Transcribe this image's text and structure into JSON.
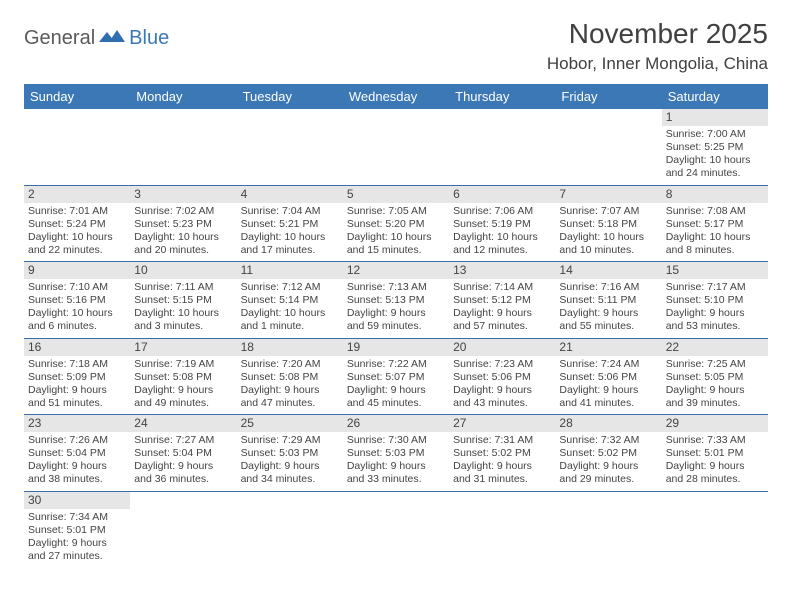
{
  "brand": {
    "text1": "General",
    "text2": "Blue",
    "icon_color": "#2f6fb0"
  },
  "title": "November 2025",
  "location": "Hobor, Inner Mongolia, China",
  "colors": {
    "header_bg": "#3b78b5",
    "header_text": "#ffffff",
    "daynum_bg": "#e6e6e6",
    "divider": "#3b6ea8",
    "text": "#444444"
  },
  "days_of_week": [
    "Sunday",
    "Monday",
    "Tuesday",
    "Wednesday",
    "Thursday",
    "Friday",
    "Saturday"
  ],
  "weeks": [
    [
      null,
      null,
      null,
      null,
      null,
      null,
      {
        "n": "1",
        "sunrise": "7:00 AM",
        "sunset": "5:25 PM",
        "daylight": "10 hours and 24 minutes."
      }
    ],
    [
      {
        "n": "2",
        "sunrise": "7:01 AM",
        "sunset": "5:24 PM",
        "daylight": "10 hours and 22 minutes."
      },
      {
        "n": "3",
        "sunrise": "7:02 AM",
        "sunset": "5:23 PM",
        "daylight": "10 hours and 20 minutes."
      },
      {
        "n": "4",
        "sunrise": "7:04 AM",
        "sunset": "5:21 PM",
        "daylight": "10 hours and 17 minutes."
      },
      {
        "n": "5",
        "sunrise": "7:05 AM",
        "sunset": "5:20 PM",
        "daylight": "10 hours and 15 minutes."
      },
      {
        "n": "6",
        "sunrise": "7:06 AM",
        "sunset": "5:19 PM",
        "daylight": "10 hours and 12 minutes."
      },
      {
        "n": "7",
        "sunrise": "7:07 AM",
        "sunset": "5:18 PM",
        "daylight": "10 hours and 10 minutes."
      },
      {
        "n": "8",
        "sunrise": "7:08 AM",
        "sunset": "5:17 PM",
        "daylight": "10 hours and 8 minutes."
      }
    ],
    [
      {
        "n": "9",
        "sunrise": "7:10 AM",
        "sunset": "5:16 PM",
        "daylight": "10 hours and 6 minutes."
      },
      {
        "n": "10",
        "sunrise": "7:11 AM",
        "sunset": "5:15 PM",
        "daylight": "10 hours and 3 minutes."
      },
      {
        "n": "11",
        "sunrise": "7:12 AM",
        "sunset": "5:14 PM",
        "daylight": "10 hours and 1 minute."
      },
      {
        "n": "12",
        "sunrise": "7:13 AM",
        "sunset": "5:13 PM",
        "daylight": "9 hours and 59 minutes."
      },
      {
        "n": "13",
        "sunrise": "7:14 AM",
        "sunset": "5:12 PM",
        "daylight": "9 hours and 57 minutes."
      },
      {
        "n": "14",
        "sunrise": "7:16 AM",
        "sunset": "5:11 PM",
        "daylight": "9 hours and 55 minutes."
      },
      {
        "n": "15",
        "sunrise": "7:17 AM",
        "sunset": "5:10 PM",
        "daylight": "9 hours and 53 minutes."
      }
    ],
    [
      {
        "n": "16",
        "sunrise": "7:18 AM",
        "sunset": "5:09 PM",
        "daylight": "9 hours and 51 minutes."
      },
      {
        "n": "17",
        "sunrise": "7:19 AM",
        "sunset": "5:08 PM",
        "daylight": "9 hours and 49 minutes."
      },
      {
        "n": "18",
        "sunrise": "7:20 AM",
        "sunset": "5:08 PM",
        "daylight": "9 hours and 47 minutes."
      },
      {
        "n": "19",
        "sunrise": "7:22 AM",
        "sunset": "5:07 PM",
        "daylight": "9 hours and 45 minutes."
      },
      {
        "n": "20",
        "sunrise": "7:23 AM",
        "sunset": "5:06 PM",
        "daylight": "9 hours and 43 minutes."
      },
      {
        "n": "21",
        "sunrise": "7:24 AM",
        "sunset": "5:06 PM",
        "daylight": "9 hours and 41 minutes."
      },
      {
        "n": "22",
        "sunrise": "7:25 AM",
        "sunset": "5:05 PM",
        "daylight": "9 hours and 39 minutes."
      }
    ],
    [
      {
        "n": "23",
        "sunrise": "7:26 AM",
        "sunset": "5:04 PM",
        "daylight": "9 hours and 38 minutes."
      },
      {
        "n": "24",
        "sunrise": "7:27 AM",
        "sunset": "5:04 PM",
        "daylight": "9 hours and 36 minutes."
      },
      {
        "n": "25",
        "sunrise": "7:29 AM",
        "sunset": "5:03 PM",
        "daylight": "9 hours and 34 minutes."
      },
      {
        "n": "26",
        "sunrise": "7:30 AM",
        "sunset": "5:03 PM",
        "daylight": "9 hours and 33 minutes."
      },
      {
        "n": "27",
        "sunrise": "7:31 AM",
        "sunset": "5:02 PM",
        "daylight": "9 hours and 31 minutes."
      },
      {
        "n": "28",
        "sunrise": "7:32 AM",
        "sunset": "5:02 PM",
        "daylight": "9 hours and 29 minutes."
      },
      {
        "n": "29",
        "sunrise": "7:33 AM",
        "sunset": "5:01 PM",
        "daylight": "9 hours and 28 minutes."
      }
    ],
    [
      {
        "n": "30",
        "sunrise": "7:34 AM",
        "sunset": "5:01 PM",
        "daylight": "9 hours and 27 minutes."
      },
      null,
      null,
      null,
      null,
      null,
      null
    ]
  ],
  "labels": {
    "sunrise": "Sunrise: ",
    "sunset": "Sunset: ",
    "daylight": "Daylight: "
  }
}
